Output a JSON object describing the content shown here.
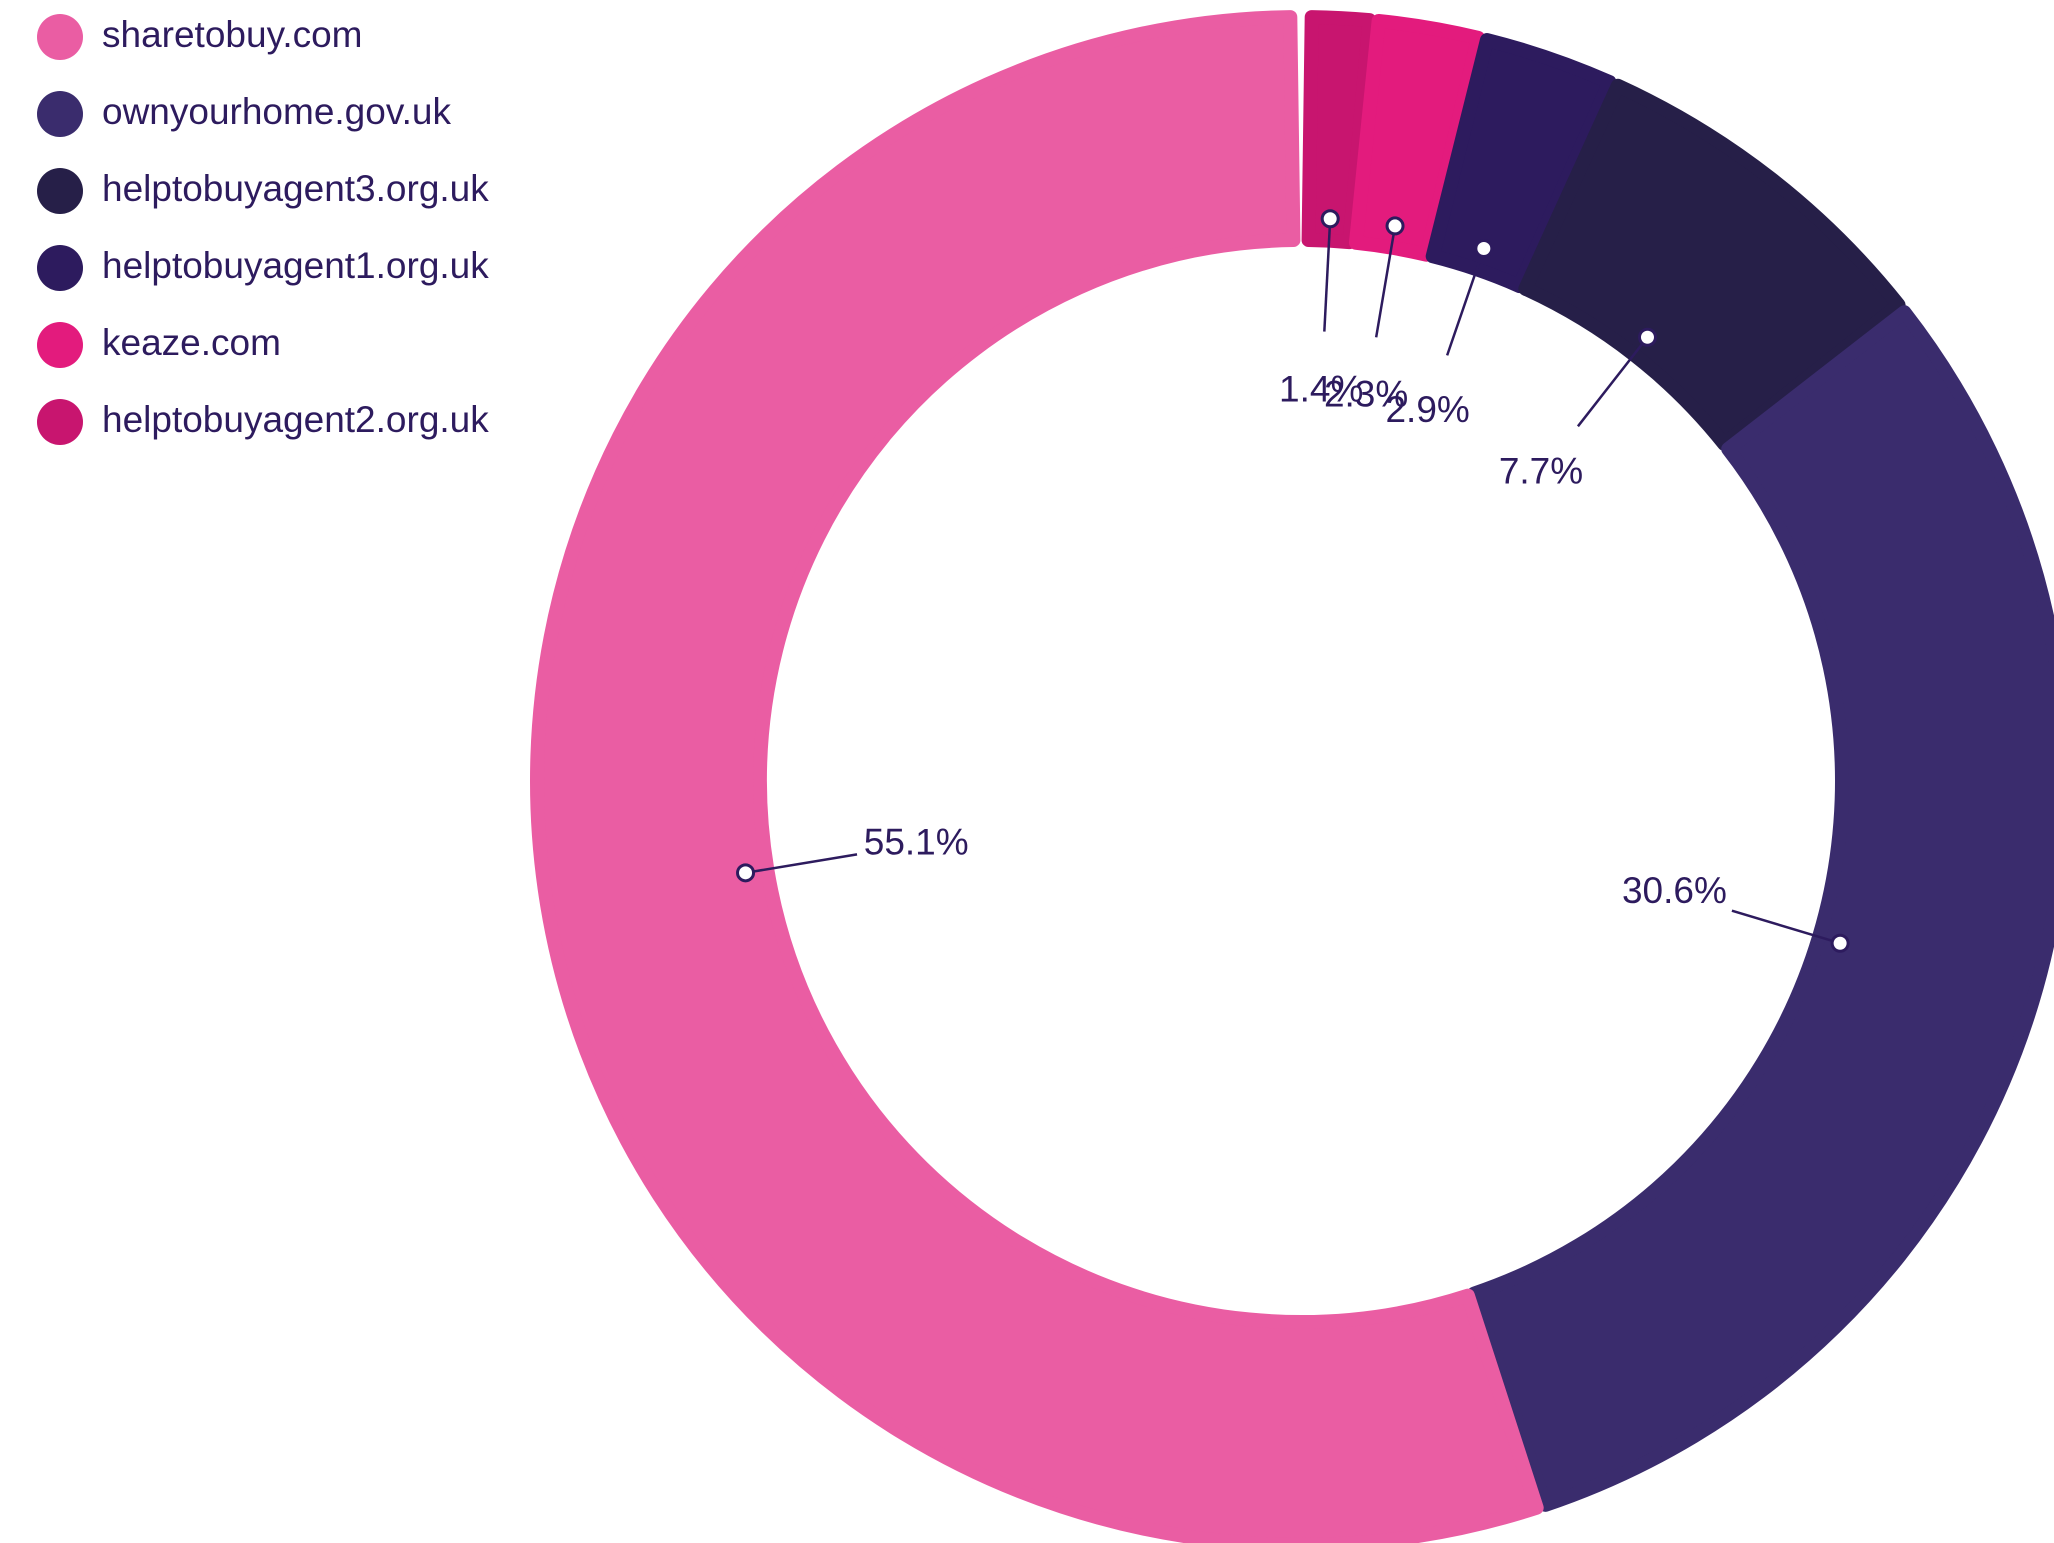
{
  "chart_data": {
    "type": "donut",
    "categories": [
      "sharetobuy.com",
      "ownyourhome.gov.uk",
      "helptobuyagent3.org.uk",
      "helptobuyagent1.org.uk",
      "keaze.com",
      "helptobuyagent2.org.uk"
    ],
    "values": [
      55.1,
      30.6,
      7.7,
      2.9,
      2.3,
      1.4
    ],
    "value_labels": [
      "55.1%",
      "30.6%",
      "7.7%",
      "2.9%",
      "2.3%",
      "1.4%"
    ],
    "colors": [
      "#ea5da3",
      "#3a2c6d",
      "#261f48",
      "#2d1b5e",
      "#e31b7d",
      "#c8156f"
    ],
    "legend": "top-left"
  }
}
